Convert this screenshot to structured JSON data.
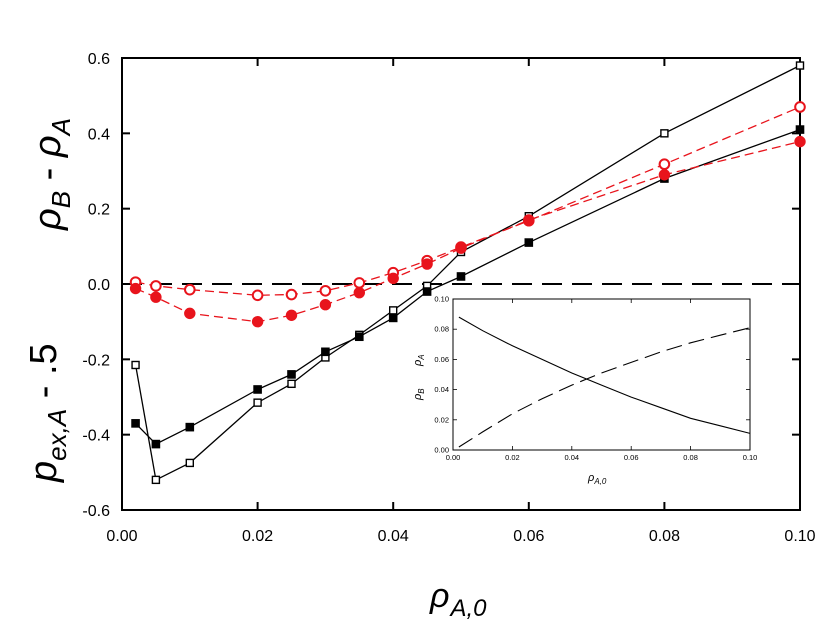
{
  "chart_data": [
    {
      "type": "line",
      "role": "main",
      "title": "",
      "xlabel": {
        "symbol": "ρ",
        "sub": "A,0"
      },
      "ylabel_top": {
        "symbol": "ρ",
        "sub1": "B",
        "mid": " - ",
        "symbol2": "ρ",
        "sub2": "A"
      },
      "ylabel_bottom": {
        "symbol": "p",
        "sub": "ex,A",
        "tail": " - .5"
      },
      "xlim": [
        0.0,
        0.1
      ],
      "ylim": [
        -0.6,
        0.6
      ],
      "xticks": [
        0.0,
        0.02,
        0.04,
        0.06,
        0.08,
        0.1
      ],
      "xtick_labels": [
        "0.00",
        "0.02",
        "0.04",
        "0.06",
        "0.08",
        "0.10"
      ],
      "yticks": [
        -0.6,
        -0.4,
        -0.2,
        0.0,
        0.2,
        0.4,
        0.6
      ],
      "ytick_labels": [
        "-0.6",
        "-0.4",
        "-0.2",
        "0.0",
        "0.2",
        "0.4",
        "0.6"
      ],
      "reference_line": {
        "y": 0.0,
        "style": "dashed",
        "color": "#000000"
      },
      "series": [
        {
          "name": "open-square",
          "color": "#000000",
          "marker": "square-open",
          "line": "solid",
          "x": [
            0.002,
            0.005,
            0.01,
            0.02,
            0.025,
            0.03,
            0.035,
            0.04,
            0.045,
            0.05,
            0.06,
            0.08,
            0.1
          ],
          "y": [
            -0.215,
            -0.52,
            -0.475,
            -0.315,
            -0.265,
            -0.195,
            -0.135,
            -0.07,
            -0.005,
            0.085,
            0.18,
            0.4,
            0.58
          ]
        },
        {
          "name": "filled-square",
          "color": "#000000",
          "marker": "square-filled",
          "line": "solid",
          "x": [
            0.002,
            0.005,
            0.01,
            0.02,
            0.025,
            0.03,
            0.035,
            0.04,
            0.045,
            0.05,
            0.06,
            0.08,
            0.1
          ],
          "y": [
            -0.37,
            -0.425,
            -0.38,
            -0.28,
            -0.24,
            -0.18,
            -0.14,
            -0.09,
            -0.02,
            0.02,
            0.11,
            0.28,
            0.41
          ]
        },
        {
          "name": "open-circle",
          "color": "#e8141c",
          "marker": "circle-open",
          "line": "dashed",
          "x": [
            0.002,
            0.005,
            0.01,
            0.02,
            0.025,
            0.03,
            0.035,
            0.04,
            0.045,
            0.05,
            0.06,
            0.08,
            0.1
          ],
          "y": [
            0.005,
            -0.005,
            -0.015,
            -0.03,
            -0.028,
            -0.018,
            0.003,
            0.03,
            0.062,
            0.098,
            0.168,
            0.318,
            0.47
          ]
        },
        {
          "name": "filled-circle",
          "color": "#e8141c",
          "marker": "circle-filled",
          "line": "dashed",
          "x": [
            0.002,
            0.005,
            0.01,
            0.02,
            0.025,
            0.03,
            0.035,
            0.04,
            0.045,
            0.05,
            0.06,
            0.08,
            0.1
          ],
          "y": [
            -0.012,
            -0.035,
            -0.078,
            -0.1,
            -0.083,
            -0.055,
            -0.023,
            0.015,
            0.053,
            0.095,
            0.17,
            0.29,
            0.378
          ]
        }
      ]
    },
    {
      "type": "line",
      "role": "inset",
      "xlabel": {
        "symbol": "ρ",
        "sub": "A,0"
      },
      "ylabel_left": {
        "symbol": "ρ",
        "sub": "B"
      },
      "ylabel_right": {
        "symbol": "ρ",
        "sub": "A"
      },
      "xlim": [
        0.0,
        0.1
      ],
      "ylim": [
        0.0,
        0.1
      ],
      "xticks": [
        0.0,
        0.02,
        0.04,
        0.06,
        0.08,
        0.1
      ],
      "xtick_labels": [
        "0.00",
        "0.02",
        "0.04",
        "0.06",
        "0.08",
        "0.10"
      ],
      "yticks": [
        0.0,
        0.02,
        0.04,
        0.06,
        0.08,
        0.1
      ],
      "ytick_labels": [
        "0.00",
        "0.02",
        "0.04",
        "0.06",
        "0.08",
        "0.10"
      ],
      "series": [
        {
          "name": "rho_B",
          "color": "#000000",
          "line": "solid",
          "x": [
            0.002,
            0.01,
            0.02,
            0.03,
            0.04,
            0.05,
            0.06,
            0.07,
            0.08,
            0.09,
            0.1
          ],
          "y": [
            0.088,
            0.079,
            0.069,
            0.06,
            0.051,
            0.043,
            0.035,
            0.028,
            0.021,
            0.016,
            0.011
          ]
        },
        {
          "name": "rho_A",
          "color": "#000000",
          "line": "long-dashed",
          "x": [
            0.002,
            0.01,
            0.02,
            0.03,
            0.04,
            0.05,
            0.06,
            0.07,
            0.08,
            0.09,
            0.1
          ],
          "y": [
            0.002,
            0.012,
            0.024,
            0.034,
            0.043,
            0.051,
            0.058,
            0.065,
            0.071,
            0.076,
            0.081
          ]
        }
      ]
    }
  ]
}
